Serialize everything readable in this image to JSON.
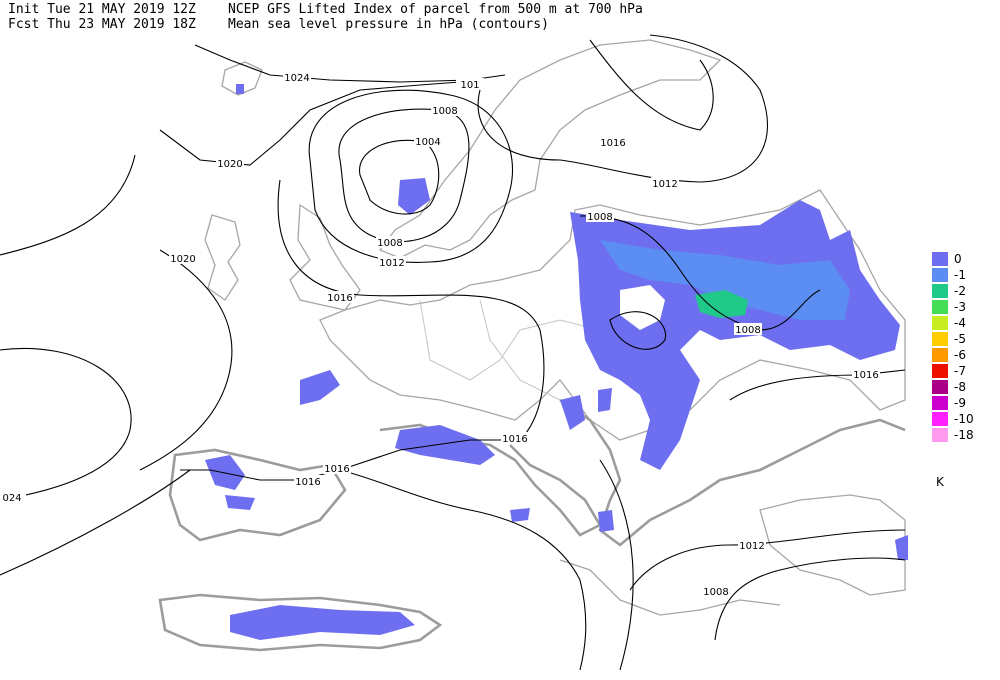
{
  "header": {
    "init": "Init  Tue 21 MAY 2019 12Z",
    "forecast": "Fcst Thu 23 MAY 2019 18Z",
    "title": "NCEP GFS Lifted Index of parcel from 500 m at 700 hPa",
    "subtitle": "Mean sea level pressure in hPa (contours)"
  },
  "legend": {
    "unit": "K",
    "items": [
      {
        "label": "0",
        "color": "#6e6ef0"
      },
      {
        "label": "-1",
        "color": "#5c8df2"
      },
      {
        "label": "-2",
        "color": "#20c98a"
      },
      {
        "label": "-3",
        "color": "#44dd55"
      },
      {
        "label": "-4",
        "color": "#c8ee22"
      },
      {
        "label": "-5",
        "color": "#ffcc00"
      },
      {
        "label": "-6",
        "color": "#ff9900"
      },
      {
        "label": "-7",
        "color": "#ee1100"
      },
      {
        "label": "-8",
        "color": "#aa0088"
      },
      {
        "label": "-9",
        "color": "#cc00cc"
      },
      {
        "label": "-10",
        "color": "#ff22ff"
      },
      {
        "label": "-18",
        "color": "#ff99ee"
      }
    ]
  },
  "contour_labels": [
    "1024",
    "1020",
    "1008",
    "1004",
    "101",
    "1008",
    "1012",
    "1016",
    "1020",
    "1016",
    "1012",
    "1008",
    "1008",
    "1016",
    "1016",
    "1016",
    "1016",
    "024",
    "1012",
    "1008"
  ]
}
